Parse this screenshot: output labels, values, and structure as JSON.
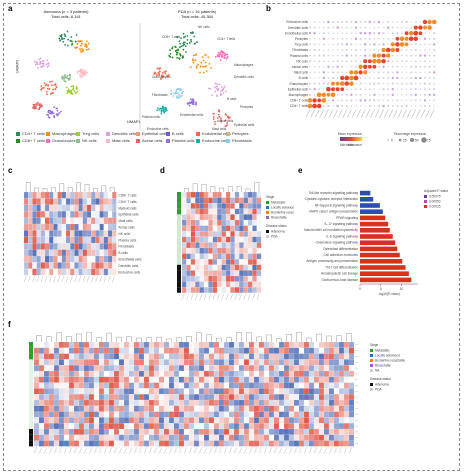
{
  "panels": {
    "a": {
      "label": "a",
      "left_title": "Adenoma (n = 3 patients)",
      "left_subtitle": "Total cells: 6,341",
      "right_title": "PDA (n = 16 patients)",
      "right_subtitle": "Total cells: 45,384",
      "axis_x": "UMAP1",
      "axis_y": "UMAP2",
      "cluster_labels": [
        "NK cells",
        "CD8+ T cells",
        "CD4+ T cells",
        "Macrophages",
        "Dendritic cells",
        "Granulocytes",
        "Fibroblasts",
        "Endothelial cells",
        "Mast cells",
        "Pericytes",
        "Plasma cells",
        "B cells",
        "Acinar cells",
        "Epithelial cells",
        "Endocrine cells"
      ],
      "legend": [
        {
          "label": "CD4+ T cells",
          "color": "#2e8b57"
        },
        {
          "label": "Macrophages",
          "color": "#ff8c00"
        },
        {
          "label": "Treg cells",
          "color": "#9acd32"
        },
        {
          "label": "Dendritic cells",
          "color": "#dda0dd"
        },
        {
          "label": "Epithelial cells",
          "color": "#e9967a"
        },
        {
          "label": "B cells",
          "color": "#6a5acd"
        },
        {
          "label": "Endothelial cells",
          "color": "#ff6347"
        },
        {
          "label": "Pericytes",
          "color": "#d2b48c"
        },
        {
          "label": "CD8+ T cells",
          "color": "#228b22"
        },
        {
          "label": "Granulocytes",
          "color": "#ff69b4"
        },
        {
          "label": "NK cells",
          "color": "#8fbc8f"
        },
        {
          "label": "Mast cells",
          "color": "#ffb6c1"
        },
        {
          "label": "Acinar cells",
          "color": "#e06666"
        },
        {
          "label": "Plasma cells",
          "color": "#9370db"
        },
        {
          "label": "Endocrine cells",
          "color": "#20b2aa"
        },
        {
          "label": "Fibroblasts",
          "color": "#87ceeb"
        }
      ]
    },
    "b": {
      "label": "b",
      "rows": [
        "Endocrine cells",
        "Dendritic cells",
        "Endothelial cells",
        "Pericytes",
        "Treg cells",
        "Fibroblasts",
        "Plasma cells",
        "NK cells",
        "Acinar cells",
        "Mast cells",
        "B cells",
        "Granulocytes",
        "Epithelial cells",
        "Macrophages",
        "CD8+ T cells",
        "CD4+ T cells"
      ],
      "legend_title": "Mean expression",
      "legend_min": "Minimum",
      "legend_max": "Maximum",
      "size_title": "Percentage expression",
      "size_values": [
        "0",
        "25",
        "50",
        "75"
      ]
    },
    "c": {
      "label": "c",
      "rows": [
        "CD8+ T cells",
        "CD4+ T cells",
        "Myeloid cells",
        "Epithelial cells",
        "Mast cells",
        "Acinar cells",
        "NK cells",
        "Plasma cells",
        "Fibroblasts",
        "B cells",
        "Endothelial cells",
        "Dendritic cells",
        "Endocrine cells"
      ]
    },
    "d": {
      "label": "d",
      "legend_title": "Stage",
      "legend_items": [
        "Metastatic",
        "Locally advanced",
        "Borderline resectable",
        "Resectable"
      ],
      "legend2_title": "Disease status",
      "legend2_items": [
        "Adenoma",
        "PDA"
      ]
    },
    "e": {
      "label": "e",
      "xlabel": "-log10(P-value)",
      "legend_title": "Adjusted P-value",
      "legend_values": [
        "0.00075",
        "0.00050",
        "0.00025"
      ],
      "terms": [
        "Toll-like receptor signaling pathway",
        "Cytokine-cytokine receptor interaction",
        "NF-kappa B signaling pathway",
        "MAPK class I antigen presentation",
        "PPAR signaling",
        "IL-17 signaling pathway",
        "Natural killer cell mediated cytotoxicity",
        "IL-6 signaling pathway",
        "Chemokine signaling pathway",
        "Osteoclast differentiation",
        "Cell adhesion molecules",
        "Antigen processing and presentation",
        "Th17 cell differentiation",
        "Hematopoietic cell lineage",
        "Graft-versus-host disease"
      ],
      "values": [
        2.5,
        3.2,
        4.8,
        5.5,
        6.1,
        6.8,
        7.2,
        7.9,
        8.5,
        9.0,
        9.6,
        10.2,
        11.0,
        11.8,
        12.4
      ],
      "xticks": [
        "0",
        "5",
        "10"
      ]
    },
    "f": {
      "label": "f",
      "legend_title": "Stage",
      "legend_items": [
        "Metastatic",
        "Locally advanced",
        "Borderline resectable",
        "Resectable",
        "NA"
      ],
      "legend2_title": "Disease status",
      "legend2_items": [
        "Adenoma",
        "PDA"
      ]
    }
  },
  "colors": {
    "heat_high": "#d7301f",
    "heat_mid": "#ffffff",
    "heat_low": "#2c4fa8",
    "bar_red": "#d7301f",
    "bar_blue": "#2c4fa8",
    "green": "#2ca02c",
    "black": "#111111"
  }
}
